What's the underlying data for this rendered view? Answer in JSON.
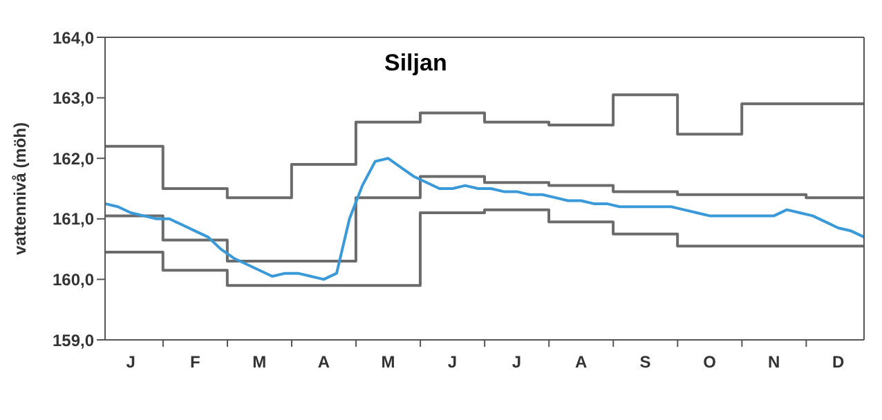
{
  "chart_data": {
    "type": "line",
    "title": "Siljan",
    "ylabel": "vattennivå (möh)",
    "categories": [
      null,
      null,
      "J",
      null,
      null,
      null,
      null,
      "F",
      null,
      null,
      null,
      null,
      "M",
      null,
      null,
      null,
      null,
      "A",
      null,
      null,
      null,
      null,
      "M",
      null,
      null,
      null,
      null,
      "J",
      null,
      null,
      null,
      null,
      "J",
      null,
      null,
      null,
      null,
      "A",
      null,
      null,
      null,
      null,
      "S",
      null,
      null,
      null,
      null,
      "O",
      null,
      null,
      null,
      null,
      "N",
      null,
      null,
      null,
      null,
      "D",
      null,
      null
    ],
    "ylim": [
      159,
      164
    ],
    "yticks": [
      {
        "value": 159,
        "label": "159,0"
      },
      {
        "value": 160,
        "label": "160,0"
      },
      {
        "value": 161,
        "label": "161,0"
      },
      {
        "value": 162,
        "label": "162,0"
      },
      {
        "value": 163,
        "label": "163,0"
      },
      {
        "value": 164,
        "label": "164,0"
      }
    ],
    "marker": "none",
    "line_style": "solid",
    "series": [
      {
        "type": "step",
        "color": "#6b6b6b",
        "values": [
          162.2,
          162.2,
          162.2,
          162.2,
          162.2,
          161.5,
          161.5,
          161.5,
          161.5,
          161.5,
          161.35,
          161.35,
          161.35,
          161.35,
          161.35,
          161.9,
          161.9,
          161.9,
          161.9,
          161.9,
          162.6,
          162.6,
          162.6,
          162.6,
          162.6,
          162.75,
          162.75,
          162.75,
          162.75,
          162.75,
          162.6,
          162.6,
          162.6,
          162.6,
          162.6,
          162.55,
          162.55,
          162.55,
          162.55,
          162.55,
          163.05,
          163.05,
          163.05,
          163.05,
          163.05,
          162.4,
          162.4,
          162.4,
          162.4,
          162.4,
          162.9,
          162.9,
          162.9,
          162.9,
          162.9,
          162.9,
          162.9,
          162.9,
          162.9,
          162.9
        ]
      },
      {
        "type": "step",
        "color": "#6b6b6b",
        "values": [
          161.05,
          161.05,
          161.05,
          161.05,
          161.05,
          160.65,
          160.65,
          160.65,
          160.65,
          160.65,
          160.3,
          160.3,
          160.3,
          160.3,
          160.3,
          160.3,
          160.3,
          160.3,
          160.3,
          160.3,
          161.35,
          161.35,
          161.35,
          161.35,
          161.35,
          161.7,
          161.7,
          161.7,
          161.7,
          161.7,
          161.6,
          161.6,
          161.6,
          161.6,
          161.6,
          161.55,
          161.55,
          161.55,
          161.55,
          161.55,
          161.45,
          161.45,
          161.45,
          161.45,
          161.45,
          161.4,
          161.4,
          161.4,
          161.4,
          161.4,
          161.4,
          161.4,
          161.4,
          161.4,
          161.4,
          161.35,
          161.35,
          161.35,
          161.35,
          161.35
        ]
      },
      {
        "type": "step",
        "color": "#6b6b6b",
        "values": [
          160.45,
          160.45,
          160.45,
          160.45,
          160.45,
          160.15,
          160.15,
          160.15,
          160.15,
          160.15,
          159.9,
          159.9,
          159.9,
          159.9,
          159.9,
          159.9,
          159.9,
          159.9,
          159.9,
          159.9,
          159.9,
          159.9,
          159.9,
          159.9,
          159.9,
          161.1,
          161.1,
          161.1,
          161.1,
          161.1,
          161.15,
          161.15,
          161.15,
          161.15,
          161.15,
          160.95,
          160.95,
          160.95,
          160.95,
          160.95,
          160.75,
          160.75,
          160.75,
          160.75,
          160.75,
          160.55,
          160.55,
          160.55,
          160.55,
          160.55,
          160.55,
          160.55,
          160.55,
          160.55,
          160.55,
          160.55,
          160.55,
          160.55,
          160.55,
          160.55
        ]
      },
      {
        "type": "line",
        "color": "#3a9ad9",
        "values": [
          161.25,
          161.2,
          161.1,
          161.05,
          161.0,
          161.0,
          160.9,
          160.8,
          160.7,
          160.5,
          160.35,
          160.25,
          160.15,
          160.05,
          160.1,
          160.1,
          160.05,
          160.0,
          160.1,
          161.0,
          161.55,
          161.95,
          162.0,
          161.85,
          161.7,
          161.6,
          161.5,
          161.5,
          161.55,
          161.5,
          161.5,
          161.45,
          161.45,
          161.4,
          161.4,
          161.35,
          161.3,
          161.3,
          161.25,
          161.25,
          161.2,
          161.2,
          161.2,
          161.2,
          161.2,
          161.15,
          161.1,
          161.05,
          161.05,
          161.05,
          161.05,
          161.05,
          161.05,
          161.15,
          161.1,
          161.05,
          160.95,
          160.85,
          160.8,
          160.7
        ]
      }
    ]
  }
}
